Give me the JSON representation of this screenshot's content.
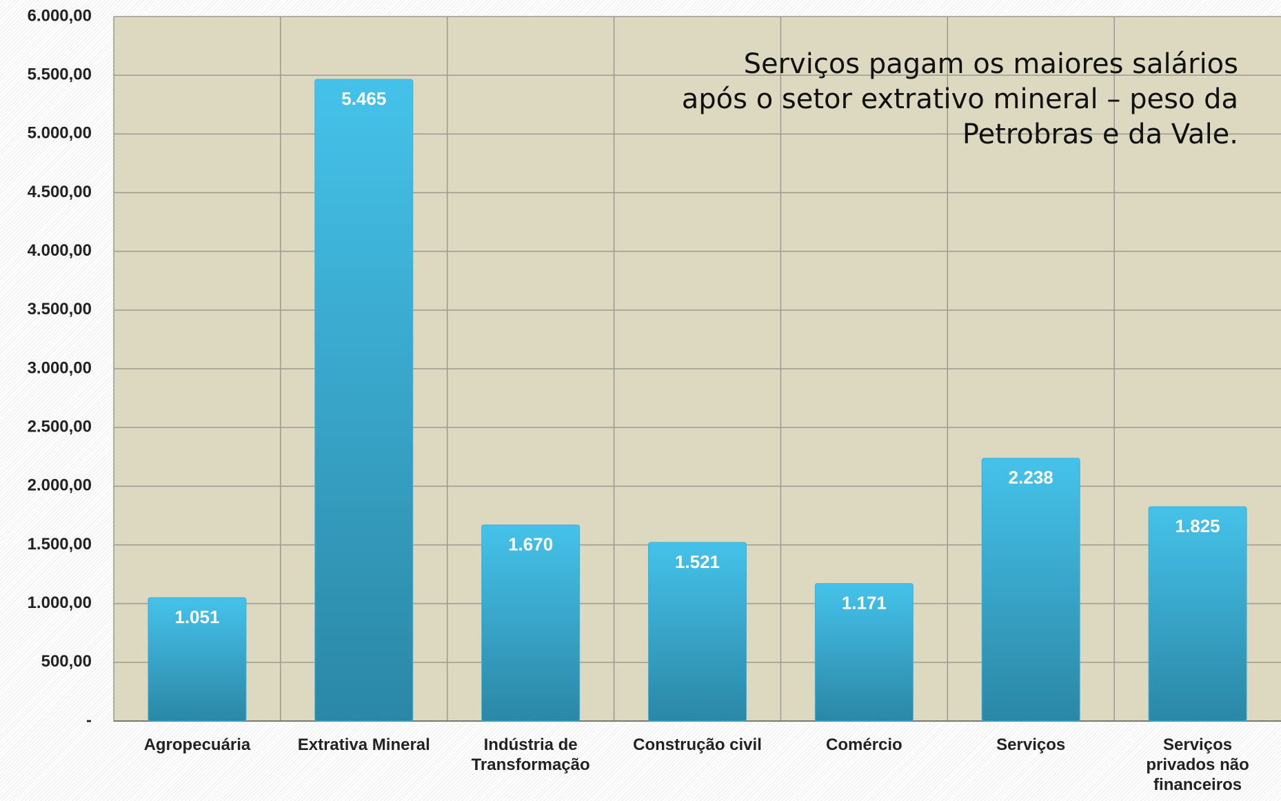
{
  "chart_data": {
    "type": "bar",
    "annotation": [
      "Serviços pagam os maiores salários",
      "após o setor extrativo mineral – peso da",
      "Petrobras e da Vale."
    ],
    "categories": [
      "Agropecuária",
      "Extrativa Mineral",
      "Indústria de Transformação",
      "Construção civil",
      "Comércio",
      "Serviços",
      "Serviços privados não financeiros"
    ],
    "values": [
      1051,
      5465,
      1670,
      1521,
      1171,
      2238,
      1825
    ],
    "value_labels": [
      "1.051",
      "5.465",
      "1.670",
      "1.521",
      "1.171",
      "2.238",
      "1.825"
    ],
    "color": "#35b3dc",
    "ylim": [
      0,
      6000
    ],
    "yticks": [
      {
        "value": 0,
        "label": "-"
      },
      {
        "value": 500,
        "label": "500,00"
      },
      {
        "value": 1000,
        "label": "1.000,00"
      },
      {
        "value": 1500,
        "label": "1.500,00"
      },
      {
        "value": 2000,
        "label": "2.000,00"
      },
      {
        "value": 2500,
        "label": "2.500,00"
      },
      {
        "value": 3000,
        "label": "3.000,00"
      },
      {
        "value": 3500,
        "label": "3.500,00"
      },
      {
        "value": 4000,
        "label": "4.000,00"
      },
      {
        "value": 4500,
        "label": "4.500,00"
      },
      {
        "value": 5000,
        "label": "5.000,00"
      },
      {
        "value": 5500,
        "label": "5.500,00"
      },
      {
        "value": 6000,
        "label": "6.000,00"
      }
    ],
    "grid": true
  }
}
